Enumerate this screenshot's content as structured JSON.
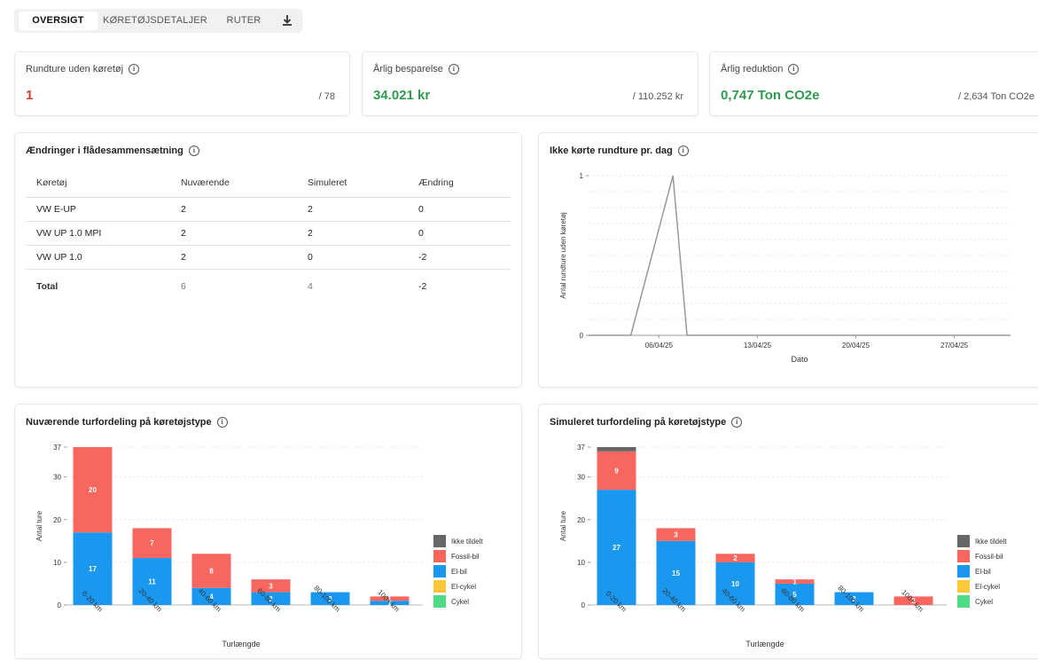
{
  "tabs": [
    {
      "label": "OVERSIGT",
      "active": true
    },
    {
      "label": "KØRETØJSDETALJER",
      "active": false
    },
    {
      "label": "RUTER",
      "active": false
    }
  ],
  "download_icon": "download-icon",
  "kpis": [
    {
      "title": "Rundture uden køretøj",
      "value": "1",
      "total": "/ 78",
      "color": "#d6392f"
    },
    {
      "title": "Årlig besparelse",
      "value": "34.021 kr",
      "total": "/ 110.252 kr",
      "color": "#2e9b4f"
    },
    {
      "title": "Årlig reduktion",
      "value": "0,747 Ton CO2e",
      "total": "/ 2,634 Ton CO2e",
      "color": "#2e9b4f"
    }
  ],
  "fleet": {
    "title": "Ændringer i flådesammensætning",
    "headers": [
      "Køretøj",
      "Nuværende",
      "Simuleret",
      "Ændring"
    ],
    "rows": [
      [
        "VW E-UP",
        "2",
        "2",
        "0"
      ],
      [
        "VW UP 1.0 MPI",
        "2",
        "2",
        "0"
      ],
      [
        "VW UP 1.0",
        "2",
        "0",
        "-2"
      ]
    ],
    "total": [
      "Total",
      "6",
      "4",
      "-2"
    ]
  },
  "legend": [
    {
      "label": "Ikke tildelt",
      "color": "#666666"
    },
    {
      "label": "Fossil-bil",
      "color": "#f8675f"
    },
    {
      "label": "El-bil",
      "color": "#1a98f0"
    },
    {
      "label": "El-cykel",
      "color": "#fcc83a"
    },
    {
      "label": "Cykel",
      "color": "#4fdb85"
    }
  ],
  "chart_data": [
    {
      "type": "line",
      "title": "Ikke kørte rundture pr. dag",
      "xlabel": "Dato",
      "ylabel": "Antal rundture uden køretøj",
      "x_ticks": [
        "06/04/25",
        "13/04/25",
        "20/04/25",
        "27/04/25"
      ],
      "y_ticks": [
        "0",
        "1"
      ],
      "ylim": [
        0,
        1
      ],
      "series": [
        {
          "x": [
            "2025-04-01",
            "2025-04-04",
            "2025-04-07",
            "2025-04-08",
            "2025-05-01"
          ],
          "y": [
            0,
            0,
            1,
            0,
            0
          ]
        }
      ]
    },
    {
      "type": "bar",
      "stacked": true,
      "title": "Nuværende turfordeling på køretøjstype",
      "xlabel": "Turlængde",
      "ylabel": "Antal ture",
      "ylim": [
        0,
        37
      ],
      "y_ticks": [
        "0",
        "10",
        "20",
        "30",
        "37"
      ],
      "categories": [
        "0-20 km",
        "20-40 km",
        "40-60 km",
        "60-80 km",
        "80-100 km",
        "100+ km"
      ],
      "series": [
        {
          "name": "Ikke tildelt",
          "values": [
            0,
            0,
            0,
            0,
            0,
            0
          ]
        },
        {
          "name": "Fossil-bil",
          "values": [
            20,
            7,
            8,
            3,
            0,
            1
          ]
        },
        {
          "name": "El-bil",
          "values": [
            17,
            11,
            4,
            3,
            3,
            1
          ]
        },
        {
          "name": "El-cykel",
          "values": [
            0,
            0,
            0,
            0,
            0,
            0
          ]
        },
        {
          "name": "Cykel",
          "values": [
            0,
            0,
            0,
            0,
            0,
            0
          ]
        }
      ]
    },
    {
      "type": "bar",
      "stacked": true,
      "title": "Simuleret turfordeling på køretøjstype",
      "xlabel": "Turlængde",
      "ylabel": "Antal ture",
      "ylim": [
        0,
        37
      ],
      "y_ticks": [
        "0",
        "10",
        "20",
        "30",
        "37"
      ],
      "categories": [
        "0-20 km",
        "20-40 km",
        "40-60 km",
        "60-80 km",
        "80-100 km",
        "100+ km"
      ],
      "series": [
        {
          "name": "Ikke tildelt",
          "values": [
            1,
            0,
            0,
            0,
            0,
            0
          ]
        },
        {
          "name": "Fossil-bil",
          "values": [
            9,
            3,
            2,
            1,
            0,
            2
          ]
        },
        {
          "name": "El-bil",
          "values": [
            27,
            15,
            10,
            5,
            3,
            0
          ]
        },
        {
          "name": "El-cykel",
          "values": [
            0,
            0,
            0,
            0,
            0,
            0
          ]
        },
        {
          "name": "Cykel",
          "values": [
            0,
            0,
            0,
            0,
            0,
            0
          ]
        }
      ]
    }
  ]
}
